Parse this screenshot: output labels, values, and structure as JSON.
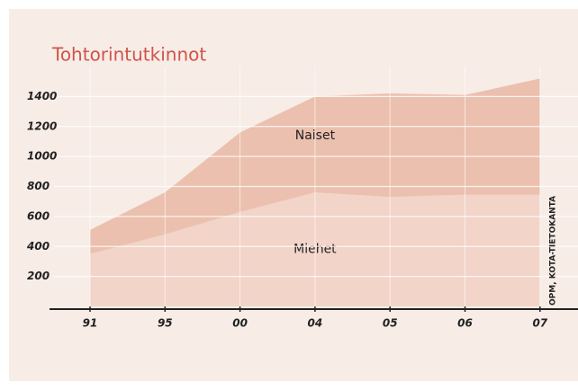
{
  "chart_data": {
    "type": "stacked-area",
    "title": "Tohtorintutkinnot",
    "categories": [
      "91",
      "95",
      "00",
      "04",
      "05",
      "06",
      "07"
    ],
    "series": [
      {
        "name": "Miehet",
        "color": "#f2d4c9",
        "values": [
          350,
          480,
          630,
          760,
          730,
          745,
          745
        ]
      },
      {
        "name": "Naiset",
        "color": "#ecc0ae",
        "values": [
          160,
          280,
          530,
          640,
          690,
          665,
          775
        ]
      }
    ],
    "ylim": [
      0,
      1600
    ],
    "yticks": [
      200,
      400,
      600,
      800,
      1000,
      1200,
      1400
    ],
    "grid": true,
    "source": "OPM, KOTA-TIETOKANTA"
  }
}
